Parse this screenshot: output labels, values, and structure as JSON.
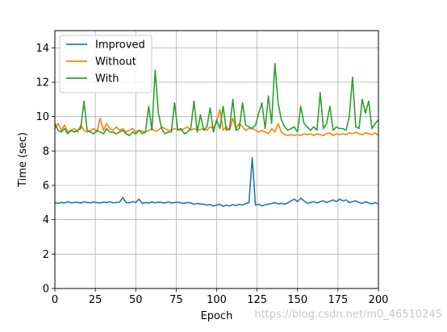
{
  "chart_data": {
    "type": "line",
    "xlabel": "Epoch",
    "ylabel": "Time (sec)",
    "xlim": [
      0,
      200
    ],
    "ylim": [
      0,
      15
    ],
    "xticks": [
      "0",
      "25",
      "50",
      "75",
      "100",
      "125",
      "150",
      "175",
      "200"
    ],
    "yticks": [
      "0",
      "2",
      "4",
      "6",
      "8",
      "10",
      "12",
      "14"
    ],
    "grid": true,
    "legend_position": "upper-left",
    "x": [
      0,
      2,
      4,
      6,
      8,
      10,
      12,
      14,
      16,
      18,
      20,
      22,
      24,
      26,
      28,
      30,
      32,
      34,
      36,
      38,
      40,
      42,
      44,
      46,
      48,
      50,
      52,
      54,
      56,
      58,
      60,
      62,
      64,
      66,
      68,
      70,
      72,
      74,
      76,
      78,
      80,
      82,
      84,
      86,
      88,
      90,
      92,
      94,
      96,
      98,
      100,
      102,
      104,
      106,
      108,
      110,
      112,
      114,
      116,
      118,
      120,
      122,
      124,
      126,
      128,
      130,
      132,
      134,
      136,
      138,
      140,
      142,
      144,
      146,
      148,
      150,
      152,
      154,
      156,
      158,
      160,
      162,
      164,
      166,
      168,
      170,
      172,
      174,
      176,
      178,
      180,
      182,
      184,
      186,
      188,
      190,
      192,
      194,
      196,
      198,
      200
    ],
    "series": [
      {
        "name": "Improved",
        "color": "#1f77b4",
        "values": [
          5.0,
          4.95,
          5.0,
          4.97,
          5.05,
          4.98,
          5.0,
          5.02,
          4.96,
          5.05,
          5.0,
          4.98,
          5.03,
          5.0,
          4.97,
          5.02,
          5.0,
          5.05,
          4.98,
          5.0,
          5.02,
          5.3,
          5.0,
          4.98,
          5.05,
          5.0,
          5.2,
          4.95,
          5.0,
          4.97,
          5.03,
          4.98,
          5.02,
          5.0,
          4.96,
          5.05,
          4.97,
          5.0,
          5.02,
          4.98,
          4.95,
          5.0,
          4.98,
          4.9,
          4.95,
          4.92,
          4.9,
          4.85,
          4.88,
          4.8,
          4.85,
          4.9,
          4.78,
          4.85,
          4.8,
          4.88,
          4.82,
          4.9,
          4.85,
          4.95,
          5.0,
          7.6,
          4.85,
          4.9,
          4.8,
          4.88,
          4.9,
          4.95,
          5.0,
          4.92,
          4.95,
          4.9,
          4.98,
          5.1,
          5.2,
          5.05,
          5.25,
          5.1,
          4.95,
          5.0,
          5.05,
          4.98,
          5.05,
          5.1,
          5.0,
          5.08,
          5.15,
          5.05,
          5.2,
          5.1,
          5.15,
          5.0,
          5.05,
          5.1,
          5.0,
          4.95,
          5.05,
          4.98,
          4.92,
          5.0,
          4.93
        ]
      },
      {
        "name": "Without",
        "color": "#ff7f0e",
        "values": [
          9.3,
          9.6,
          9.2,
          9.5,
          9.1,
          9.2,
          9.3,
          9.1,
          9.5,
          9.2,
          9.1,
          9.2,
          9.3,
          9.1,
          9.9,
          9.2,
          9.6,
          9.3,
          9.2,
          9.4,
          9.2,
          9.3,
          9.1,
          9.2,
          9.3,
          9.1,
          9.2,
          9.15,
          9.1,
          9.2,
          9.3,
          9.15,
          9.2,
          9.4,
          9.3,
          9.2,
          9.2,
          9.3,
          9.25,
          9.2,
          9.3,
          9.4,
          9.2,
          9.3,
          9.2,
          9.25,
          9.3,
          9.2,
          9.4,
          9.3,
          9.7,
          10.4,
          9.2,
          9.4,
          9.2,
          9.9,
          9.3,
          9.6,
          9.4,
          9.2,
          9.3,
          9.3,
          9.2,
          9.1,
          9.2,
          9.1,
          9.0,
          9.3,
          9.1,
          9.6,
          9.1,
          8.95,
          8.9,
          8.95,
          8.9,
          8.95,
          8.9,
          9.0,
          8.95,
          9.0,
          8.9,
          9.0,
          8.95,
          8.9,
          9.0,
          9.05,
          8.9,
          9.0,
          8.95,
          9.0,
          8.95,
          9.05,
          9.0,
          9.1,
          9.0,
          8.95,
          9.05,
          9.0,
          8.95,
          9.05,
          8.9
        ]
      },
      {
        "name": "With",
        "color": "#2ca02c",
        "values": [
          9.6,
          9.2,
          9.1,
          9.3,
          9.0,
          9.2,
          9.1,
          9.2,
          9.3,
          10.9,
          9.2,
          9.1,
          9.0,
          9.2,
          9.1,
          9.0,
          9.3,
          9.1,
          9.1,
          9.0,
          9.1,
          9.2,
          9.0,
          8.9,
          9.1,
          9.0,
          9.2,
          9.0,
          9.1,
          10.6,
          9.2,
          12.7,
          10.2,
          9.3,
          9.0,
          9.1,
          9.1,
          10.8,
          9.2,
          9.3,
          9.0,
          9.1,
          9.3,
          10.9,
          9.1,
          10.1,
          9.2,
          9.4,
          10.5,
          9.1,
          9.8,
          9.3,
          10.6,
          9.2,
          9.3,
          11.0,
          9.2,
          9.3,
          10.8,
          9.5,
          9.4,
          9.3,
          9.5,
          10.2,
          10.8,
          9.3,
          11.2,
          9.6,
          13.1,
          10.8,
          9.8,
          9.4,
          9.2,
          9.3,
          9.4,
          9.1,
          10.6,
          9.6,
          9.4,
          9.2,
          9.4,
          9.2,
          11.4,
          9.3,
          9.6,
          10.6,
          9.2,
          9.4,
          9.3,
          9.3,
          9.2,
          10.0,
          12.3,
          9.4,
          9.3,
          11.0,
          10.2,
          10.9,
          9.3,
          9.6,
          9.8
        ]
      }
    ]
  },
  "watermark": "https://blog.csdn.net/m0_46510245"
}
